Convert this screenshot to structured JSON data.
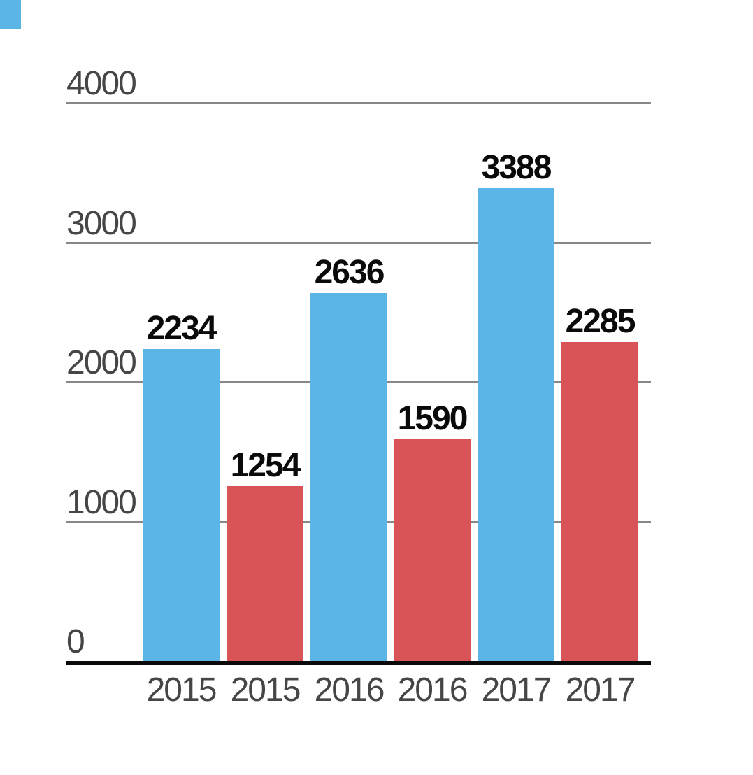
{
  "chart_data": {
    "type": "bar",
    "title": "",
    "categories": [
      "2015",
      "2016",
      "2017"
    ],
    "series": [
      {
        "name": "blue-series",
        "color": "#5CB5E7",
        "values": [
          2234,
          2636,
          3388
        ]
      },
      {
        "name": "red-series",
        "color": "#D85456",
        "values": [
          1254,
          1590,
          2285
        ]
      }
    ],
    "bars": [
      {
        "x_label": "2015",
        "value": 2234,
        "series": 0
      },
      {
        "x_label": "2015",
        "value": 1254,
        "series": 1
      },
      {
        "x_label": "2016",
        "value": 2636,
        "series": 0
      },
      {
        "x_label": "2016",
        "value": 1590,
        "series": 1
      },
      {
        "x_label": "2017",
        "value": 3388,
        "series": 0
      },
      {
        "x_label": "2017",
        "value": 2285,
        "series": 1
      }
    ],
    "y_ticks": [
      4000,
      3000,
      2000,
      1000,
      0
    ],
    "ylim": [
      0,
      4000
    ],
    "grid": true,
    "legend_position": "none",
    "value_labels_shown": true
  },
  "style": {
    "background": "#FFFFFF",
    "gridline_color": "#878787",
    "baseline_color": "#0A0A0A",
    "axis_label_color": "#464646",
    "value_label_color": "#0A0A0A",
    "corner_square_color": "#5CB5E7"
  }
}
